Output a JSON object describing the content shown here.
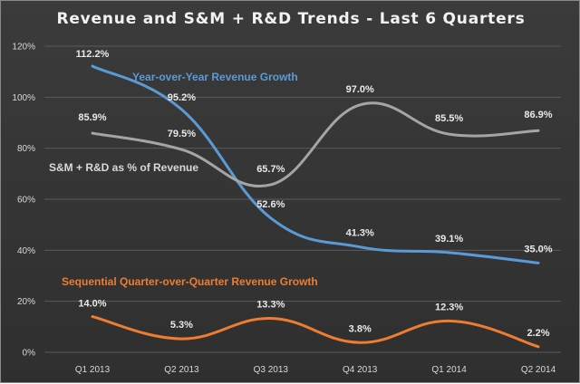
{
  "chart_data": {
    "type": "line",
    "title": "Revenue and S&M + R&D Trends - Last 6 Quarters",
    "categories": [
      "Q1 2013",
      "Q2 2013",
      "Q3 2013",
      "Q4 2013",
      "Q1 2014",
      "Q2 2014"
    ],
    "ylim": [
      0,
      120
    ],
    "yticks": [
      "0%",
      "20%",
      "40%",
      "60%",
      "80%",
      "100%",
      "120%"
    ],
    "grid": true,
    "series": [
      {
        "name": "Year-over-Year Revenue Growth",
        "color": "#5b9bd5",
        "values": [
          112.2,
          95.2,
          52.6,
          41.3,
          39.1,
          35.0
        ],
        "labels": [
          "112.2%",
          "95.2%",
          "52.6%",
          "41.3%",
          "39.1%",
          "35.0%"
        ]
      },
      {
        "name": "S&M + R&D as % of Revenue",
        "color": "#a5a5a5",
        "values": [
          85.9,
          79.5,
          65.7,
          97.0,
          85.5,
          86.9
        ],
        "labels": [
          "85.9%",
          "79.5%",
          "65.7%",
          "97.0%",
          "85.5%",
          "86.9%"
        ]
      },
      {
        "name": "Sequential Quarter-over-Quarter Revenue Growth",
        "color": "#ed7d31",
        "values": [
          14.0,
          5.3,
          13.3,
          3.8,
          12.3,
          2.2
        ],
        "labels": [
          "14.0%",
          "5.3%",
          "13.3%",
          "3.8%",
          "12.3%",
          "2.2%"
        ]
      }
    ]
  }
}
